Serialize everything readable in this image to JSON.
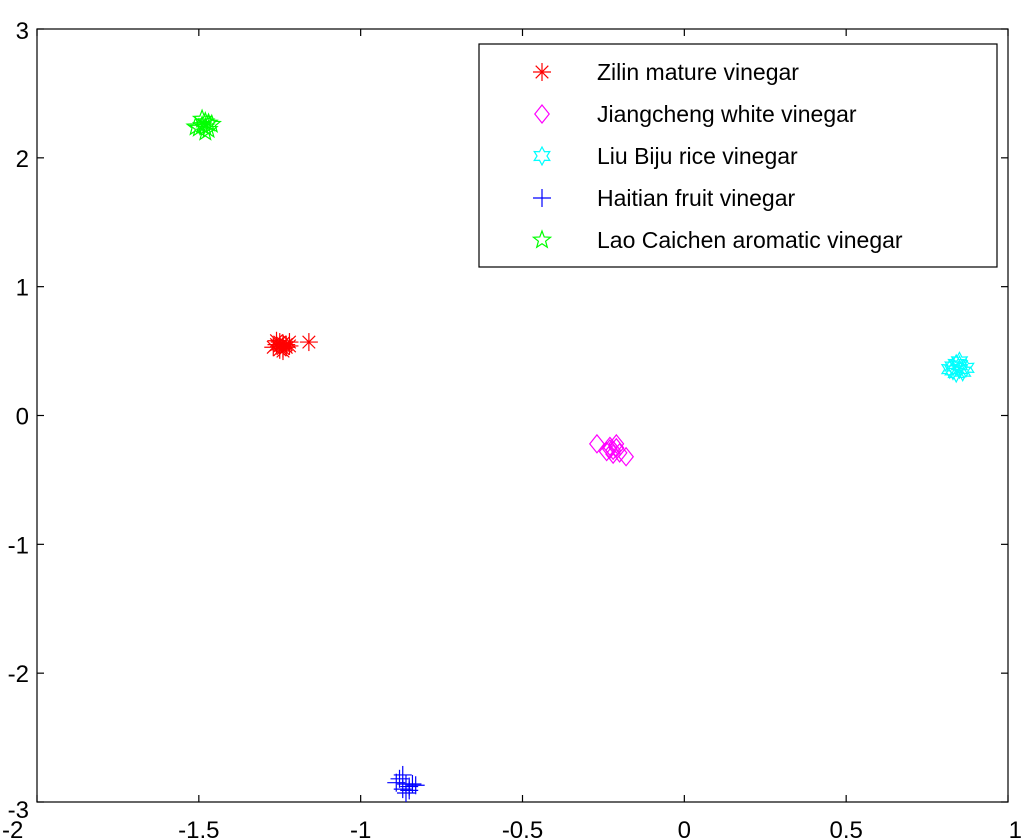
{
  "chart_data": {
    "type": "scatter",
    "title": "",
    "xlabel": "",
    "ylabel": "",
    "xlim": [
      -2,
      1
    ],
    "ylim": [
      -3,
      3
    ],
    "xticks": [
      "-2",
      "-1.5",
      "-1",
      "-0.5",
      "0",
      "0.5",
      "1"
    ],
    "yticks": [
      "-3",
      "-2",
      "-1",
      "0",
      "1",
      "2",
      "3"
    ],
    "grid": false,
    "legend_position": "top-right",
    "series": [
      {
        "name": "Zilin mature vinegar",
        "color": "#ff0000",
        "marker": "asterisk",
        "points": [
          [
            -1.26,
            0.58
          ],
          [
            -1.24,
            0.56
          ],
          [
            -1.25,
            0.54
          ],
          [
            -1.23,
            0.55
          ],
          [
            -1.27,
            0.53
          ],
          [
            -1.25,
            0.51
          ],
          [
            -1.24,
            0.52
          ],
          [
            -1.22,
            0.57
          ],
          [
            -1.26,
            0.55
          ],
          [
            -1.23,
            0.53
          ],
          [
            -1.22,
            0.54
          ],
          [
            -1.25,
            0.57
          ],
          [
            -1.24,
            0.5
          ],
          [
            -1.16,
            0.57
          ]
        ]
      },
      {
        "name": "Jiangcheng white vinegar",
        "color": "#ff00ff",
        "marker": "diamond",
        "points": [
          [
            -0.27,
            -0.22
          ],
          [
            -0.23,
            -0.24
          ],
          [
            -0.22,
            -0.27
          ],
          [
            -0.21,
            -0.25
          ],
          [
            -0.24,
            -0.28
          ],
          [
            -0.22,
            -0.3
          ],
          [
            -0.2,
            -0.29
          ],
          [
            -0.23,
            -0.26
          ],
          [
            -0.21,
            -0.22
          ],
          [
            -0.18,
            -0.32
          ]
        ]
      },
      {
        "name": "Liu Biju rice vinegar",
        "color": "#00ffff",
        "marker": "hexagram",
        "points": [
          [
            0.83,
            0.38
          ],
          [
            0.85,
            0.36
          ],
          [
            0.84,
            0.4
          ],
          [
            0.86,
            0.34
          ],
          [
            0.84,
            0.33
          ],
          [
            0.82,
            0.36
          ],
          [
            0.85,
            0.39
          ],
          [
            0.87,
            0.37
          ],
          [
            0.83,
            0.35
          ],
          [
            0.85,
            0.42
          ]
        ]
      },
      {
        "name": "Haitian fruit vinegar",
        "color": "#0000ff",
        "marker": "plus",
        "points": [
          [
            -0.88,
            -2.82
          ],
          [
            -0.86,
            -2.86
          ],
          [
            -0.87,
            -2.9
          ],
          [
            -0.85,
            -2.88
          ],
          [
            -0.84,
            -2.86
          ],
          [
            -0.86,
            -2.93
          ],
          [
            -0.83,
            -2.87
          ],
          [
            -0.89,
            -2.85
          ],
          [
            -0.85,
            -2.91
          ],
          [
            -0.87,
            -2.79
          ]
        ]
      },
      {
        "name": "Lao Caichen aromatic vinegar",
        "color": "#00ff00",
        "marker": "pentagram",
        "points": [
          [
            -1.49,
            2.25
          ],
          [
            -1.47,
            2.22
          ],
          [
            -1.48,
            2.28
          ],
          [
            -1.5,
            2.23
          ],
          [
            -1.46,
            2.26
          ],
          [
            -1.48,
            2.2
          ],
          [
            -1.49,
            2.3
          ],
          [
            -1.47,
            2.27
          ],
          [
            -1.51,
            2.24
          ],
          [
            -1.48,
            2.24
          ]
        ]
      }
    ]
  }
}
